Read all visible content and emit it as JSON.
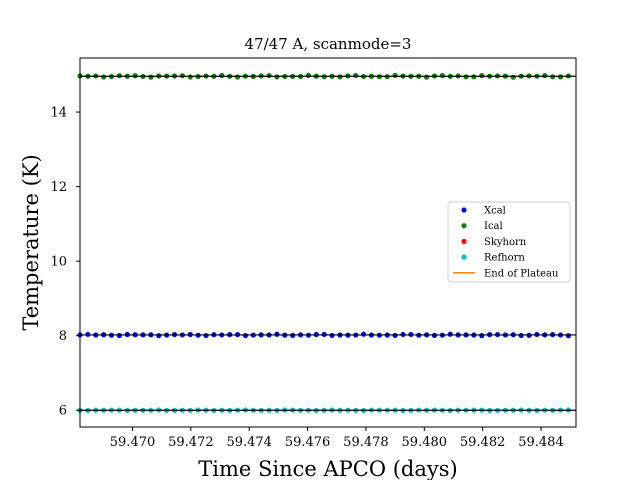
{
  "chart_data": {
    "type": "scatter",
    "title": "47/47 A, scanmode=3",
    "xlabel": "Time Since APCO (days)",
    "ylabel": "Temperature (K)",
    "xlim": [
      59.4682,
      59.4852
    ],
    "ylim": [
      5.55,
      15.45
    ],
    "x_ticks": [
      59.47,
      59.472,
      59.474,
      59.476,
      59.478,
      59.48,
      59.482,
      59.484
    ],
    "x_tick_labels": [
      "59.470",
      "59.472",
      "59.474",
      "59.476",
      "59.478",
      "59.480",
      "59.482",
      "59.484"
    ],
    "y_ticks": [
      6,
      8,
      10,
      12,
      14
    ],
    "y_tick_labels": [
      "6",
      "8",
      "10",
      "12",
      "14"
    ],
    "grid": false,
    "legend_position": "center-right",
    "x_start": 59.4682,
    "x_step": 0.00027,
    "n_points": 63,
    "series": [
      {
        "name": "Xcal",
        "color": "#0000ff",
        "mean": 8.02,
        "jitter": 0.02,
        "fit_line": true,
        "fit_color": "#000000"
      },
      {
        "name": "Ical",
        "color": "#008000",
        "mean": 14.96,
        "jitter": 0.025,
        "fit_line": true,
        "fit_color": "#000000"
      },
      {
        "name": "Skyhorn",
        "color": "#ff0000",
        "mean": null,
        "jitter": 0,
        "fit_line": false
      },
      {
        "name": "Refhorn",
        "color": "#00bfbf",
        "mean": 6.0,
        "jitter": 0.008,
        "fit_line": true,
        "fit_color": "#000000"
      }
    ],
    "legend_extra": [
      {
        "name": "End of Plateau",
        "color": "#ff7f0e",
        "kind": "line"
      }
    ]
  }
}
